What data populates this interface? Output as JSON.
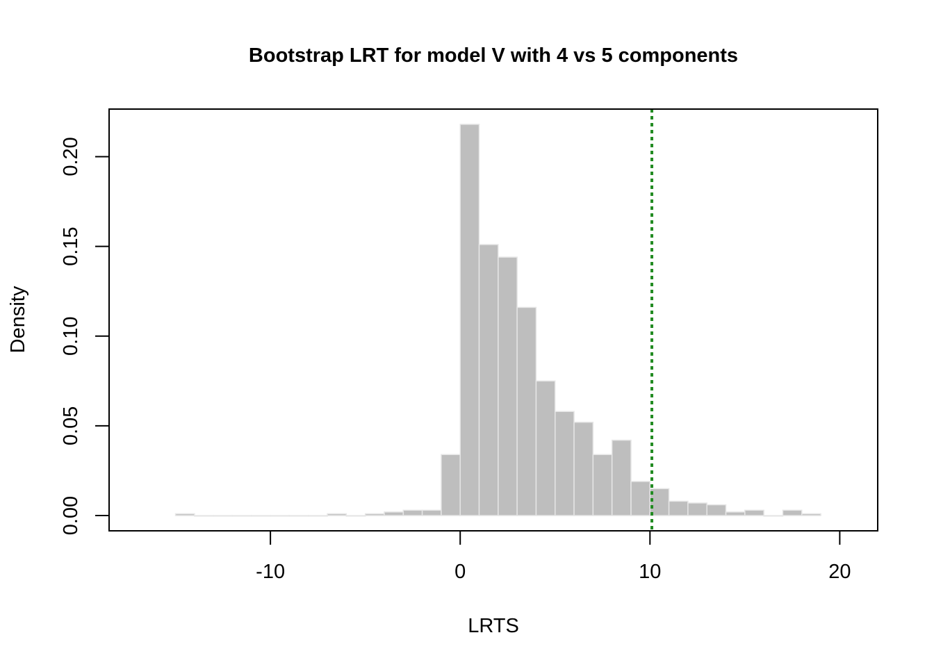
{
  "chart_data": {
    "type": "bar",
    "subtype": "histogram",
    "title": "Bootstrap LRT for model V with 4 vs 5 components",
    "xlabel": "LRTS",
    "ylabel": "Density",
    "xlim": [
      -18.5,
      22
    ],
    "ylim": [
      -0.0085,
      0.2265
    ],
    "x_ticks": [
      -10,
      0,
      10,
      20
    ],
    "x_tick_labels": [
      "-10",
      "0",
      "10",
      "20"
    ],
    "y_ticks": [
      0,
      0.05,
      0.1,
      0.15,
      0.2
    ],
    "y_tick_labels": [
      "0.00",
      "0.05",
      "0.10",
      "0.15",
      "0.20"
    ],
    "grid": false,
    "bin_edges": [
      -15,
      -14,
      -13,
      -12,
      -11,
      -10,
      -9,
      -8,
      -7,
      -6,
      -5,
      -4,
      -3,
      -2,
      -1,
      0,
      1,
      2,
      3,
      4,
      5,
      6,
      7,
      8,
      9,
      10,
      11,
      12,
      13,
      14,
      15,
      16,
      17,
      18,
      19
    ],
    "densities": [
      0.001,
      0,
      0,
      0,
      0,
      0,
      0,
      0,
      0.001,
      0,
      0.001,
      0.002,
      0.003,
      0.003,
      0.034,
      0.218,
      0.151,
      0.144,
      0.116,
      0.075,
      0.058,
      0.052,
      0.034,
      0.042,
      0.019,
      0.015,
      0.008,
      0.007,
      0.006,
      0.002,
      0.003,
      0,
      0.003,
      0.001
    ],
    "bar_color": "#bebebe",
    "bar_border_color": "#e6e6e6",
    "reference_line": {
      "x": 10.1,
      "style": "dotted",
      "color": "#228B22"
    }
  }
}
